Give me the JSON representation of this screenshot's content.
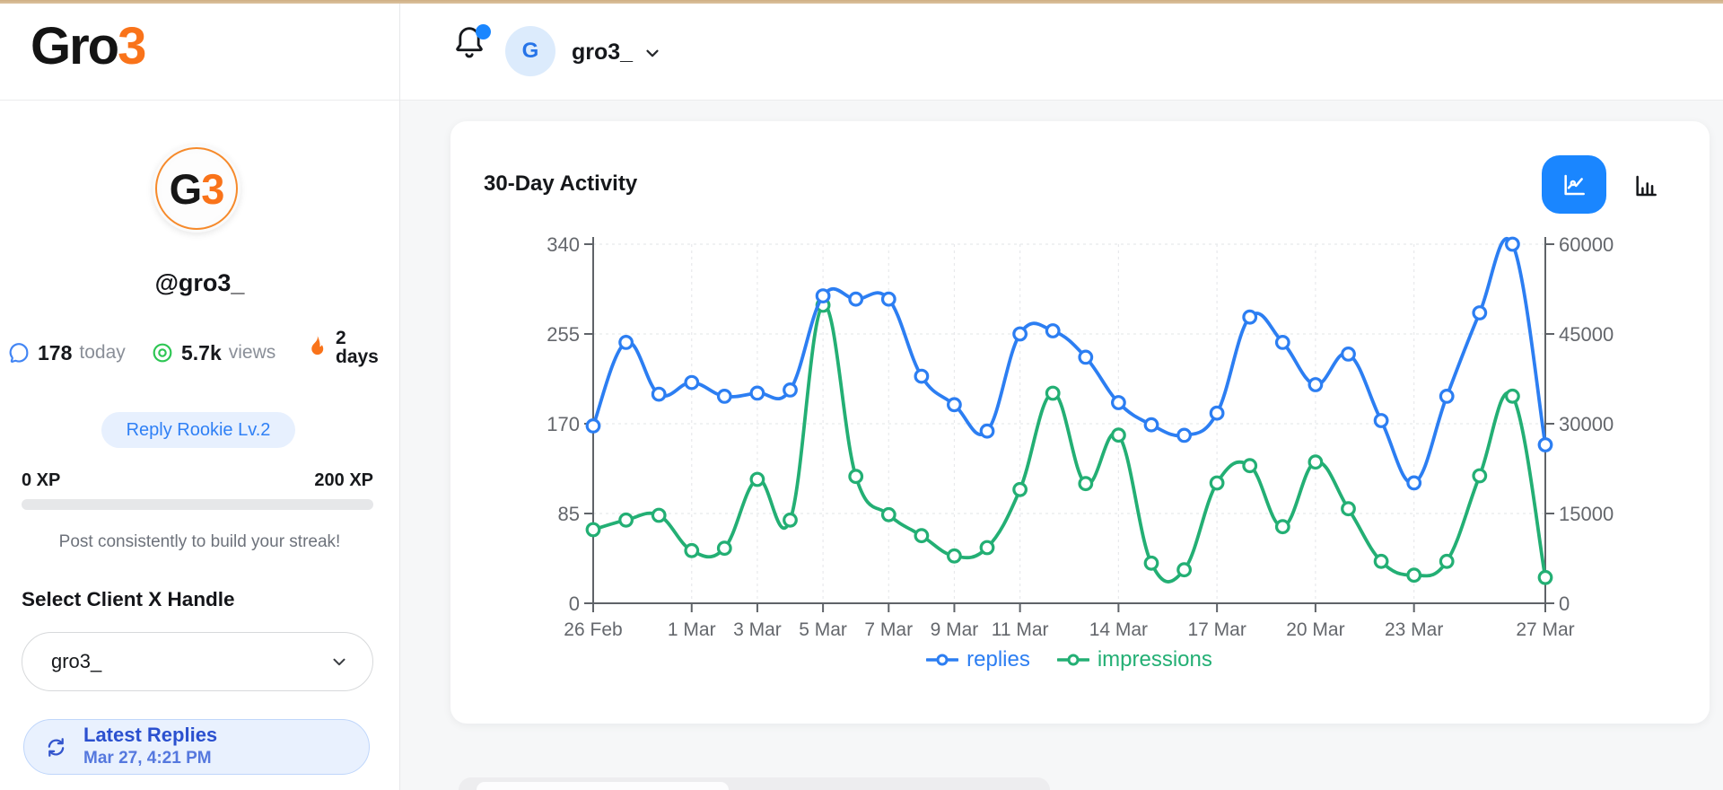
{
  "logo": {
    "prefix": "Gro",
    "suffix": "3"
  },
  "topbar": {
    "avatar_initial": "G",
    "username": "gro3_"
  },
  "sidebar": {
    "avatar": {
      "prefix": "G",
      "suffix": "3"
    },
    "handle": "@gro3_",
    "stats": {
      "replies": {
        "value": "178",
        "label": "today"
      },
      "views": {
        "value": "5.7k",
        "label": "views"
      },
      "streak": {
        "value": "2",
        "label": "days"
      }
    },
    "level_badge": "Reply Rookie Lv.2",
    "xp": {
      "start": "0 XP",
      "end": "200 XP",
      "progress_percent": 0
    },
    "hint": "Post consistently to build your streak!",
    "select_heading": "Select Client X Handle",
    "select_value": "gro3_",
    "refresh_button": {
      "title": "Latest Replies",
      "timestamp": "Mar 27, 4:21 PM"
    }
  },
  "activity_card": {
    "title": "30-Day Activity",
    "view_toggle": {
      "active": "line",
      "options": [
        "line",
        "bar"
      ]
    }
  },
  "icons": {
    "bell": "notification-bell",
    "notification_dot": "unread-indicator",
    "chat_bubble": "replies-count",
    "eye": "views-count",
    "flame": "streak",
    "chevron_down": "expand-menu",
    "refresh": "reload-replies",
    "line_chart": "line-view",
    "bar_chart": "bar-view"
  },
  "chart_data": {
    "type": "line",
    "title": "30-Day Activity",
    "days": 30,
    "grid": "dashed",
    "legend_position": "bottom",
    "x_ticks": [
      {
        "label": "26 Feb",
        "day": 0
      },
      {
        "label": "1 Mar",
        "day": 3
      },
      {
        "label": "3 Mar",
        "day": 5
      },
      {
        "label": "5 Mar",
        "day": 7
      },
      {
        "label": "7 Mar",
        "day": 9
      },
      {
        "label": "9 Mar",
        "day": 11
      },
      {
        "label": "11 Mar",
        "day": 13
      },
      {
        "label": "14 Mar",
        "day": 16
      },
      {
        "label": "17 Mar",
        "day": 19
      },
      {
        "label": "20 Mar",
        "day": 22
      },
      {
        "label": "23 Mar",
        "day": 25
      },
      {
        "label": "27 Mar",
        "day": 29
      }
    ],
    "left_axis": {
      "series": "replies",
      "ticks": [
        0,
        85,
        170,
        255,
        340
      ],
      "max": 340
    },
    "right_axis": {
      "series": "impressions",
      "ticks": [
        0,
        15000,
        30000,
        45000,
        60000
      ],
      "max": 60000
    },
    "series": [
      {
        "name": "replies",
        "axis": "left",
        "color": "#2c7ef2",
        "values": [
          168,
          247,
          198,
          209,
          196,
          199,
          202,
          291,
          288,
          288,
          215,
          188,
          163,
          255,
          258,
          233,
          190,
          169,
          159,
          180,
          271,
          247,
          207,
          236,
          173,
          114,
          196,
          275,
          340,
          150
        ]
      },
      {
        "name": "impressions",
        "axis": "right",
        "color": "#23af74",
        "values": [
          12300,
          13900,
          14700,
          8800,
          9200,
          20700,
          13900,
          49800,
          21200,
          14800,
          11300,
          7900,
          9300,
          19000,
          35100,
          20000,
          28100,
          6700,
          5600,
          20100,
          23000,
          12800,
          23600,
          15800,
          7000,
          4700,
          7000,
          21300,
          34600,
          4300
        ]
      }
    ]
  }
}
